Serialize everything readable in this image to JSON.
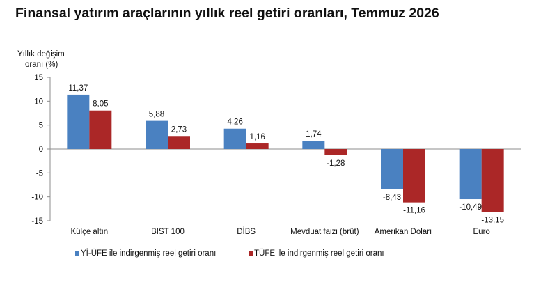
{
  "title": "Finansal yatırım araçlarının yıllık reel getiri oranları, Temmuz 2026",
  "chart_data": {
    "type": "bar",
    "title": "Finansal yatırım araçlarının yıllık reel getiri oranları, Temmuz 2026",
    "ylabel": [
      "Yıllık değişim",
      "oranı (%)"
    ],
    "xlabel": "",
    "ylim": [
      -15,
      15
    ],
    "yticks": [
      15,
      10,
      5,
      0,
      -5,
      -10,
      -15
    ],
    "categories": [
      "Külçe altın",
      "BIST 100",
      "DİBS",
      "Mevduat faizi (brüt)",
      "Amerikan Doları",
      "Euro"
    ],
    "series": [
      {
        "name": "Yİ-ÜFE ile indirgenmiş reel getiri oranı",
        "color": "#4a81c1",
        "values": [
          11.37,
          5.88,
          4.26,
          1.74,
          -8.43,
          -10.49
        ],
        "labels": [
          "11,37",
          "5,88",
          "4,26",
          "1,74",
          "-8,43",
          "-10,49"
        ]
      },
      {
        "name": "TÜFE ile indirgenmiş reel getiri oranı",
        "color": "#ab2727",
        "values": [
          8.05,
          2.73,
          1.16,
          -1.28,
          -11.16,
          -13.15
        ],
        "labels": [
          "8,05",
          "2,73",
          "1,16",
          "-1,28",
          "-11,16",
          "-13,15"
        ]
      }
    ],
    "grid": false,
    "legend": "bottom"
  }
}
